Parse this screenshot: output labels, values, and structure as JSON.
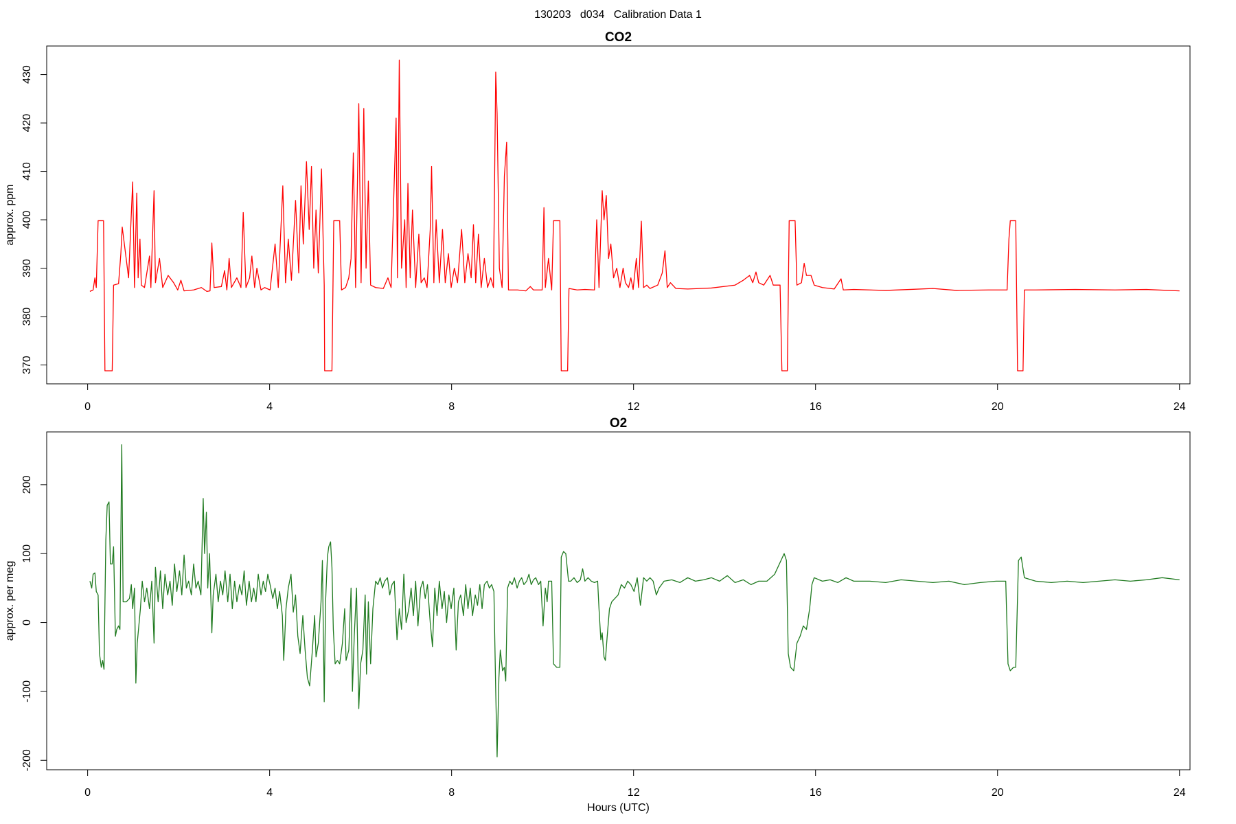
{
  "title": "130203   d034   Calibration Data 1",
  "chart_data": [
    {
      "type": "line",
      "title": "CO2",
      "ylabel": "approx. ppm",
      "color": "#ff0000",
      "xlim": [
        -0.9,
        24.23
      ],
      "xticks": [
        0,
        4,
        8,
        12,
        16,
        20,
        24
      ],
      "ylim": [
        366.1,
        435.9
      ],
      "yticks": [
        370,
        380,
        390,
        400,
        410,
        420,
        430
      ],
      "x": [
        0.05,
        0.12,
        0.16,
        0.19,
        0.23,
        0.35,
        0.38,
        0.54,
        0.57,
        0.68,
        0.73,
        0.76,
        0.82,
        0.9,
        0.99,
        1.03,
        1.08,
        1.11,
        1.15,
        1.18,
        1.25,
        1.36,
        1.39,
        1.46,
        1.49,
        1.58,
        1.65,
        1.77,
        1.89,
        1.98,
        2.05,
        2.12,
        2.33,
        2.5,
        2.62,
        2.69,
        2.73,
        2.78,
        2.94,
        3.01,
        3.06,
        3.11,
        3.16,
        3.28,
        3.37,
        3.42,
        3.48,
        3.56,
        3.61,
        3.67,
        3.72,
        3.81,
        3.89,
        4.01,
        4.12,
        4.19,
        4.29,
        4.35,
        4.41,
        4.48,
        4.57,
        4.64,
        4.69,
        4.74,
        4.81,
        4.87,
        4.92,
        4.97,
        5.02,
        5.07,
        5.14,
        5.2,
        5.21,
        5.37,
        5.41,
        5.54,
        5.58,
        5.67,
        5.74,
        5.79,
        5.84,
        5.89,
        5.96,
        6.01,
        6.07,
        6.12,
        6.17,
        6.22,
        6.33,
        6.5,
        6.6,
        6.67,
        6.78,
        6.81,
        6.85,
        6.9,
        6.97,
        7.0,
        7.04,
        7.09,
        7.14,
        7.21,
        7.28,
        7.33,
        7.4,
        7.46,
        7.53,
        7.56,
        7.61,
        7.66,
        7.73,
        7.8,
        7.86,
        7.93,
        7.99,
        8.06,
        8.13,
        8.22,
        8.29,
        8.36,
        8.43,
        8.48,
        8.53,
        8.59,
        8.65,
        8.72,
        8.79,
        8.86,
        8.92,
        8.97,
        9.0,
        9.05,
        9.11,
        9.16,
        9.21,
        9.25,
        9.45,
        9.63,
        9.73,
        9.8,
        9.99,
        10.03,
        10.06,
        10.13,
        10.2,
        10.24,
        10.38,
        10.41,
        10.55,
        10.58,
        10.76,
        10.93,
        11.14,
        11.19,
        11.24,
        11.31,
        11.35,
        11.4,
        11.45,
        11.5,
        11.56,
        11.63,
        11.7,
        11.77,
        11.82,
        11.89,
        11.94,
        11.99,
        12.06,
        12.11,
        12.17,
        12.22,
        12.29,
        12.36,
        12.53,
        12.63,
        12.69,
        12.74,
        12.81,
        12.93,
        13.19,
        13.71,
        14.23,
        14.41,
        14.55,
        14.62,
        14.69,
        14.75,
        14.86,
        15.0,
        15.07,
        15.22,
        15.26,
        15.38,
        15.42,
        15.55,
        15.59,
        15.69,
        15.75,
        15.8,
        15.9,
        15.97,
        16.15,
        16.41,
        16.56,
        16.61,
        16.84,
        17.54,
        18.06,
        18.58,
        19.1,
        19.8,
        20.21,
        20.25,
        20.28,
        20.4,
        20.44,
        20.56,
        20.59,
        20.84,
        21.71,
        22.58,
        23.27,
        24.0
      ],
      "values": [
        385.2,
        385.5,
        388,
        386,
        399.8,
        399.8,
        368.8,
        368.8,
        386.5,
        386.8,
        393,
        398.5,
        394,
        388,
        407.8,
        386,
        405.5,
        388,
        396,
        386.5,
        386,
        392.5,
        386,
        406,
        387,
        392,
        386,
        388.5,
        387,
        385.5,
        387.5,
        385.3,
        385.5,
        386,
        385.2,
        385.3,
        395.2,
        386,
        386.2,
        389.5,
        385.5,
        392,
        386,
        388,
        386,
        401.5,
        386,
        388,
        392.5,
        386,
        390,
        385.5,
        386,
        385.5,
        395,
        386,
        407,
        387,
        396,
        387.5,
        404,
        389,
        407,
        395,
        412,
        398,
        411,
        390,
        402,
        389,
        410.5,
        386.5,
        368.8,
        368.8,
        399.8,
        399.8,
        385.5,
        386,
        388,
        392,
        413.8,
        386,
        424,
        387,
        423,
        390,
        408,
        386.5,
        386,
        385.8,
        388,
        386,
        421,
        388,
        433,
        390,
        400,
        386,
        407.5,
        388,
        402,
        386,
        397,
        387,
        388,
        386,
        398,
        411,
        387,
        400,
        387,
        398,
        387,
        393,
        386,
        390,
        387,
        398,
        387,
        393,
        388,
        399,
        387,
        397,
        386,
        392,
        386,
        388,
        386,
        430.5,
        422,
        390,
        386,
        409,
        416,
        385.5,
        385.5,
        385.3,
        386.2,
        385.5,
        385.5,
        402.5,
        386,
        392,
        385.5,
        399.8,
        399.8,
        368.8,
        368.8,
        385.8,
        385.5,
        385.6,
        385.5,
        400,
        386,
        406,
        400,
        405,
        392,
        395,
        388,
        390,
        386,
        390,
        387,
        386,
        388,
        385.6,
        392,
        386,
        399.7,
        386,
        386.5,
        385.8,
        386.5,
        389,
        393.6,
        386,
        387,
        385.8,
        385.7,
        385.9,
        386.5,
        387.5,
        388.5,
        387,
        389.2,
        387,
        386.5,
        388.5,
        386.5,
        386.5,
        368.8,
        368.8,
        399.8,
        399.8,
        386.5,
        387,
        391,
        388.5,
        388.5,
        386.5,
        386,
        385.7,
        387.8,
        385.5,
        385.6,
        385.4,
        385.6,
        385.8,
        385.4,
        385.5,
        385.5,
        396,
        399.8,
        399.8,
        368.8,
        368.8,
        385.5,
        385.5,
        385.6,
        385.5,
        385.6,
        385.3
      ]
    },
    {
      "type": "line",
      "title": "O2",
      "ylabel": "approx. per meg",
      "xlabel": "Hours (UTC)",
      "color": "#1f7a1f",
      "xlim": [
        -0.9,
        24.23
      ],
      "xticks": [
        0,
        4,
        8,
        12,
        16,
        20,
        24
      ],
      "ylim": [
        -213.7,
        276.6
      ],
      "yticks": [
        -200,
        -100,
        0,
        100,
        200
      ],
      "x": [
        0.05,
        0.09,
        0.12,
        0.16,
        0.19,
        0.23,
        0.26,
        0.3,
        0.33,
        0.36,
        0.4,
        0.43,
        0.47,
        0.5,
        0.54,
        0.57,
        0.61,
        0.64,
        0.68,
        0.71,
        0.75,
        0.78,
        0.85,
        0.92,
        0.96,
        0.99,
        1.03,
        1.06,
        1.09,
        1.16,
        1.2,
        1.25,
        1.3,
        1.36,
        1.41,
        1.46,
        1.49,
        1.55,
        1.6,
        1.65,
        1.7,
        1.76,
        1.81,
        1.86,
        1.91,
        1.96,
        2.02,
        2.07,
        2.12,
        2.17,
        2.22,
        2.28,
        2.33,
        2.38,
        2.43,
        2.49,
        2.54,
        2.57,
        2.61,
        2.64,
        2.68,
        2.73,
        2.76,
        2.82,
        2.87,
        2.92,
        2.97,
        3.02,
        3.08,
        3.13,
        3.18,
        3.23,
        3.28,
        3.34,
        3.39,
        3.44,
        3.49,
        3.55,
        3.6,
        3.65,
        3.7,
        3.75,
        3.81,
        3.86,
        3.91,
        3.96,
        4.01,
        4.07,
        4.12,
        4.17,
        4.22,
        4.28,
        4.31,
        4.36,
        4.41,
        4.47,
        4.52,
        4.57,
        4.62,
        4.67,
        4.73,
        4.78,
        4.83,
        4.88,
        4.94,
        4.99,
        5.02,
        5.07,
        5.13,
        5.16,
        5.2,
        5.23,
        5.27,
        5.3,
        5.34,
        5.37,
        5.4,
        5.44,
        5.49,
        5.54,
        5.6,
        5.65,
        5.68,
        5.74,
        5.79,
        5.82,
        5.86,
        5.91,
        5.96,
        6.0,
        6.05,
        6.1,
        6.13,
        6.17,
        6.22,
        6.27,
        6.33,
        6.38,
        6.43,
        6.48,
        6.53,
        6.59,
        6.64,
        6.69,
        6.74,
        6.8,
        6.85,
        6.9,
        6.95,
        7.0,
        7.06,
        7.11,
        7.16,
        7.21,
        7.26,
        7.32,
        7.37,
        7.42,
        7.47,
        7.53,
        7.58,
        7.63,
        7.68,
        7.73,
        7.79,
        7.84,
        7.89,
        7.94,
        7.99,
        8.05,
        8.1,
        8.15,
        8.2,
        8.26,
        8.31,
        8.36,
        8.41,
        8.46,
        8.52,
        8.57,
        8.62,
        8.67,
        8.72,
        8.78,
        8.83,
        8.88,
        8.93,
        8.97,
        9.0,
        9.04,
        9.07,
        9.12,
        9.16,
        9.19,
        9.23,
        9.28,
        9.33,
        9.38,
        9.44,
        9.49,
        9.54,
        9.59,
        9.65,
        9.7,
        9.75,
        9.8,
        9.85,
        9.91,
        9.96,
        10.01,
        10.06,
        10.1,
        10.13,
        10.2,
        10.24,
        10.31,
        10.38,
        10.41,
        10.46,
        10.51,
        10.57,
        10.62,
        10.69,
        10.76,
        10.83,
        10.88,
        10.93,
        11.0,
        11.07,
        11.14,
        11.21,
        11.24,
        11.28,
        11.31,
        11.35,
        11.38,
        11.42,
        11.47,
        11.52,
        11.59,
        11.66,
        11.73,
        11.8,
        11.87,
        11.94,
        12.01,
        12.08,
        12.15,
        12.22,
        12.29,
        12.36,
        12.43,
        12.5,
        12.56,
        12.67,
        12.84,
        13.02,
        13.19,
        13.36,
        13.54,
        13.71,
        13.89,
        14.06,
        14.23,
        14.41,
        14.58,
        14.75,
        14.93,
        15.1,
        15.24,
        15.31,
        15.36,
        15.4,
        15.45,
        15.52,
        15.59,
        15.66,
        15.73,
        15.8,
        15.87,
        15.92,
        15.97,
        16.15,
        16.32,
        16.49,
        16.67,
        16.84,
        17.19,
        17.54,
        17.88,
        18.23,
        18.58,
        18.93,
        19.27,
        19.62,
        19.97,
        20.18,
        20.23,
        20.28,
        20.35,
        20.4,
        20.46,
        20.52,
        20.59,
        20.84,
        21.18,
        21.53,
        21.88,
        22.23,
        22.58,
        22.92,
        23.27,
        23.62,
        24.0
      ],
      "values": [
        60,
        50,
        70,
        72,
        45,
        40,
        -45,
        -65,
        -55,
        -68,
        120,
        170,
        175,
        85,
        85,
        110,
        -20,
        -10,
        -5,
        -10,
        258,
        30,
        30,
        35,
        55,
        20,
        50,
        -88,
        -30,
        20,
        60,
        30,
        50,
        20,
        60,
        -30,
        80,
        30,
        75,
        20,
        70,
        40,
        60,
        25,
        85,
        45,
        75,
        40,
        98,
        50,
        60,
        40,
        85,
        50,
        60,
        40,
        180,
        100,
        160,
        50,
        100,
        -15,
        40,
        70,
        30,
        60,
        40,
        75,
        30,
        70,
        20,
        60,
        30,
        55,
        40,
        75,
        25,
        60,
        30,
        50,
        30,
        70,
        40,
        60,
        45,
        70,
        55,
        35,
        50,
        20,
        45,
        10,
        -55,
        20,
        50,
        70,
        15,
        40,
        -20,
        -45,
        10,
        -40,
        -80,
        -92,
        -40,
        10,
        -50,
        -30,
        30,
        90,
        -115,
        30,
        95,
        110,
        117,
        80,
        -10,
        -60,
        -55,
        -60,
        -30,
        20,
        -55,
        -40,
        50,
        -100,
        -20,
        50,
        -125,
        -60,
        -40,
        40,
        -75,
        30,
        -60,
        20,
        60,
        55,
        65,
        50,
        60,
        65,
        40,
        55,
        60,
        -25,
        20,
        -10,
        70,
        0,
        20,
        50,
        10,
        60,
        -5,
        50,
        60,
        35,
        55,
        0,
        -35,
        50,
        10,
        60,
        20,
        45,
        0,
        40,
        20,
        50,
        -40,
        30,
        40,
        10,
        55,
        20,
        50,
        10,
        40,
        25,
        55,
        20,
        55,
        60,
        50,
        55,
        45,
        -100,
        -195,
        -80,
        -40,
        -70,
        -65,
        -85,
        50,
        60,
        55,
        65,
        50,
        60,
        65,
        55,
        60,
        70,
        55,
        62,
        65,
        55,
        60,
        -5,
        50,
        30,
        60,
        60,
        -60,
        -65,
        -65,
        95,
        103,
        100,
        60,
        60,
        65,
        58,
        62,
        78,
        60,
        65,
        60,
        58,
        60,
        20,
        -25,
        -15,
        -50,
        -55,
        -20,
        20,
        30,
        35,
        40,
        55,
        50,
        60,
        55,
        45,
        65,
        25,
        65,
        60,
        65,
        60,
        40,
        50,
        60,
        62,
        58,
        65,
        60,
        62,
        65,
        60,
        68,
        58,
        62,
        55,
        60,
        60,
        70,
        90,
        100,
        90,
        -45,
        -65,
        -70,
        -30,
        -20,
        -5,
        -10,
        20,
        55,
        65,
        60,
        62,
        58,
        65,
        60,
        60,
        58,
        62,
        60,
        58,
        60,
        55,
        58,
        60,
        60,
        -60,
        -70,
        -65,
        -65,
        90,
        95,
        65,
        60,
        58,
        60,
        58,
        60,
        62,
        60,
        62,
        65,
        62
      ]
    }
  ]
}
